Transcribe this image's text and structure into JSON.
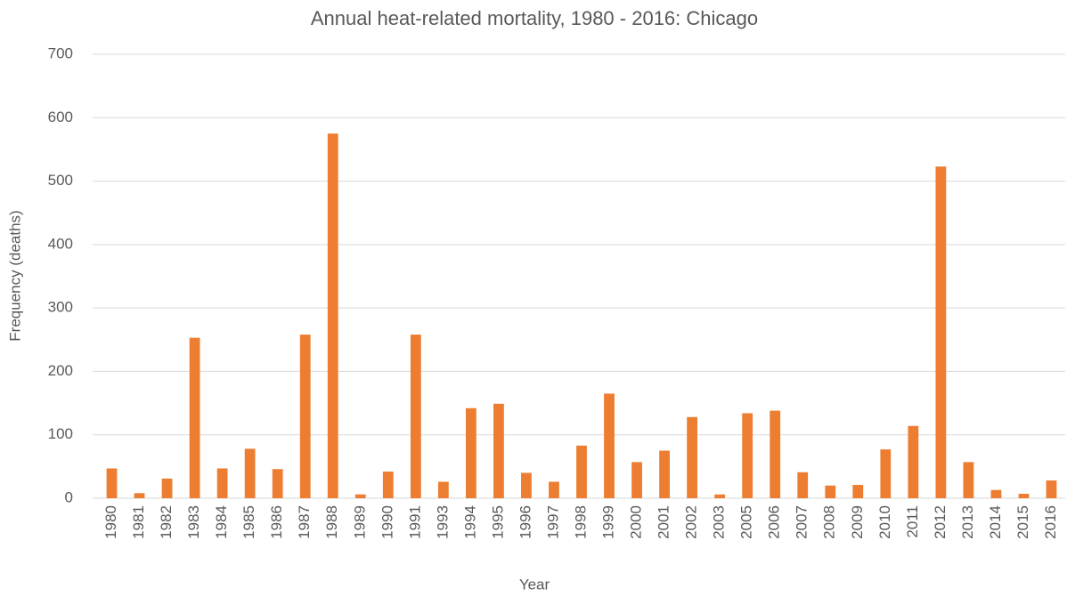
{
  "chart_data": {
    "type": "bar",
    "title": "Annual heat-related mortality, 1980 - 2016: Chicago",
    "x_label": "Year",
    "y_label": "Frequency (deaths)",
    "categories": [
      "1980",
      "1981",
      "1982",
      "1983",
      "1984",
      "1985",
      "1986",
      "1987",
      "1988",
      "1989",
      "1990",
      "1991",
      "1993",
      "1994",
      "1995",
      "1996",
      "1997",
      "1998",
      "1999",
      "2000",
      "2001",
      "2002",
      "2003",
      "2005",
      "2006",
      "2007",
      "2008",
      "2009",
      "2010",
      "2011",
      "2012",
      "2013",
      "2014",
      "2015",
      "2016"
    ],
    "values": [
      47,
      8,
      31,
      253,
      47,
      78,
      46,
      258,
      575,
      6,
      42,
      258,
      26,
      142,
      149,
      40,
      26,
      83,
      165,
      57,
      75,
      128,
      6,
      134,
      138,
      41,
      20,
      21,
      77,
      114,
      523,
      57,
      13,
      7,
      28
    ],
    "color": "#ed7d31",
    "ylim": [
      0,
      700
    ],
    "yticks": [
      0,
      100,
      200,
      300,
      400,
      500,
      600,
      700
    ],
    "grid": true
  }
}
